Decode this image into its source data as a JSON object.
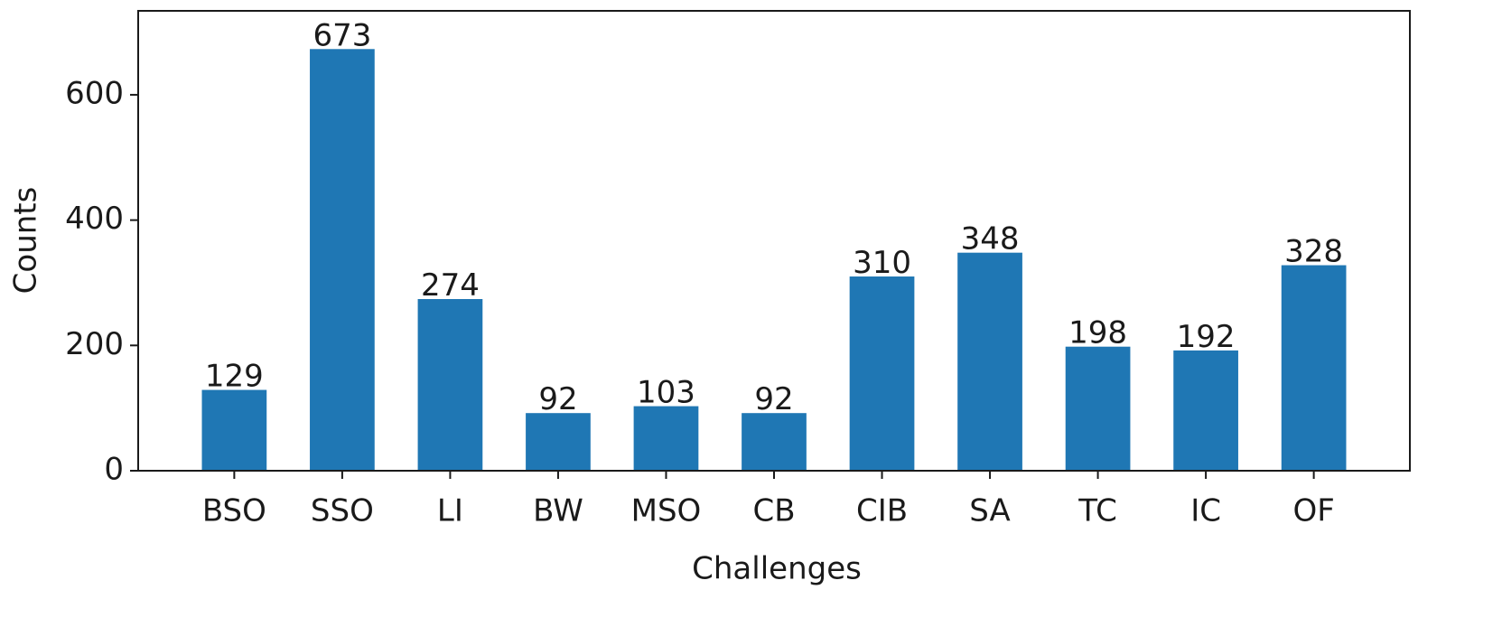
{
  "chart_data": {
    "type": "bar",
    "x_label": "Challenges",
    "y_label": "Counts",
    "categories": [
      "BSO",
      "SSO",
      "LI",
      "BW",
      "MSO",
      "CB",
      "CIB",
      "SA",
      "TC",
      "IC",
      "OF"
    ],
    "values": [
      129,
      673,
      274,
      92,
      103,
      92,
      310,
      348,
      198,
      192,
      328
    ],
    "color": "#1f77b4",
    "ylim": [
      0,
      734
    ],
    "yticks": [
      0,
      200,
      400,
      600
    ],
    "value_labels_shown": true
  }
}
